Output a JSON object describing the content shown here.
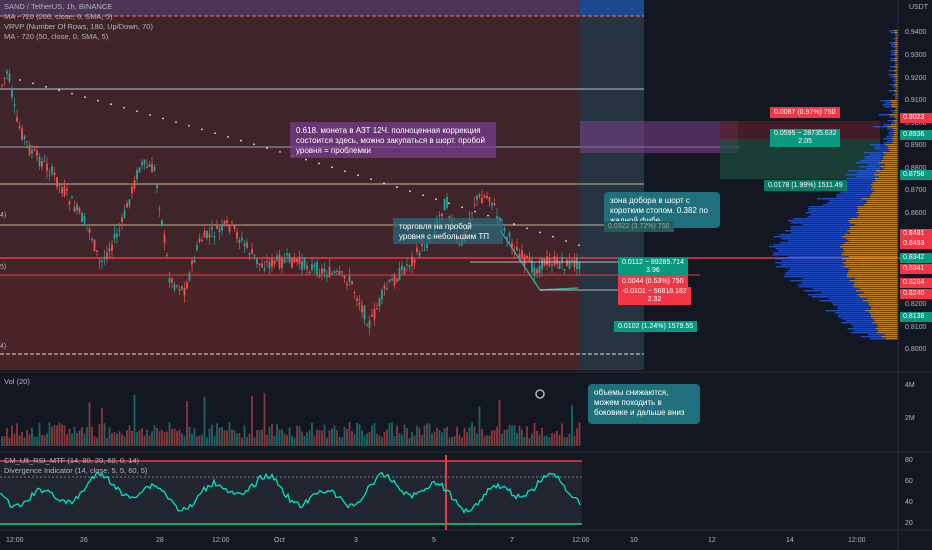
{
  "legend": {
    "symbol": "SAND / TetherUS, 1h, BINANCE",
    "ma1": "MA - 720 (200, close, 0, SMA, 5)",
    "vrvp": "VRVP (Number Of Rows, 180, Up/Down, 70)",
    "ma2": "MA - 720 (50, close, 0, SMA, 5)"
  },
  "volume_label": "Vol (20)",
  "rsi_label": "CM_Ult_RSI_MTF (14, 80, 20, 60, 0, 14)",
  "divergence_label": "Divergence Indicator (14, close, 5, 5, 60, 5)",
  "currency": "USDT",
  "price_axis": [
    "0.9400",
    "0.9300",
    "0.9200",
    "0.9100",
    "0.9000",
    "0.8900",
    "0.8800",
    "0.8700",
    "0.8600",
    "0.8500",
    "0.8400",
    "0.8300",
    "0.8200",
    "0.8100",
    "0.8000"
  ],
  "volume_axis": [
    "4M",
    "2M"
  ],
  "rsi_axis": [
    "80",
    "60",
    "40",
    "20"
  ],
  "time_axis": [
    "12:00",
    "26",
    "28",
    "12:00",
    "Oct",
    "3",
    "5",
    "7",
    "12:00",
    "10",
    "12",
    "14",
    "12:00"
  ],
  "price_tags": [
    {
      "text": "0.9023",
      "color": "#f23645"
    },
    {
      "text": "0.8936",
      "color": "#089981"
    },
    {
      "text": "0.8758",
      "color": "#089981"
    },
    {
      "text": "0.8481",
      "color": "#f23645"
    },
    {
      "text": "0.8453",
      "color": "#f23645"
    },
    {
      "text": "0.8342",
      "color": "#089981"
    },
    {
      "text": "0.8341",
      "color": "#f23645"
    },
    {
      "text": "0.8284",
      "color": "#f23645"
    },
    {
      "text": "0.8240",
      "color": "#f23645"
    },
    {
      "text": "0.8138",
      "color": "#089981"
    }
  ],
  "measures": {
    "m1": "0.0087 (0.97%) 750",
    "m2a": "0.0595 ~ 28735.632",
    "m2b": "2.05",
    "m3": "0.0178 (1.99%) 1511.49",
    "m4": "0.0322 (3.72%) 750",
    "m5a": "0.0112 ~ 89285.714",
    "m5b": "3.96",
    "m6": "0.0044 (0.53%) 750",
    "m7a": "-0.0101 ~ 56818.182",
    "m7b": "2.32",
    "m8": "0.0102 (1.24%) 1579.55"
  },
  "annotations": {
    "purple": "0.618. монета в АЗТ 12Ч. полноценная коррекция состоится здесь, можно закупаться в шорт. пробой уровня = проблемки",
    "trade": "торговля на пробой уровня с небольшим ТП",
    "short": "зона добора в шорт с коротким стопом. 0.382 по жадной фибе",
    "volume": "объемы снижаются, можем походить в боковике и дальше вниз"
  },
  "left_edge_labels": [
    "4)",
    "5)",
    "4)"
  ],
  "colors": {
    "up": "#26a69a",
    "down": "#ef5350",
    "rsi": "#00e5c9",
    "bg": "#131722"
  }
}
